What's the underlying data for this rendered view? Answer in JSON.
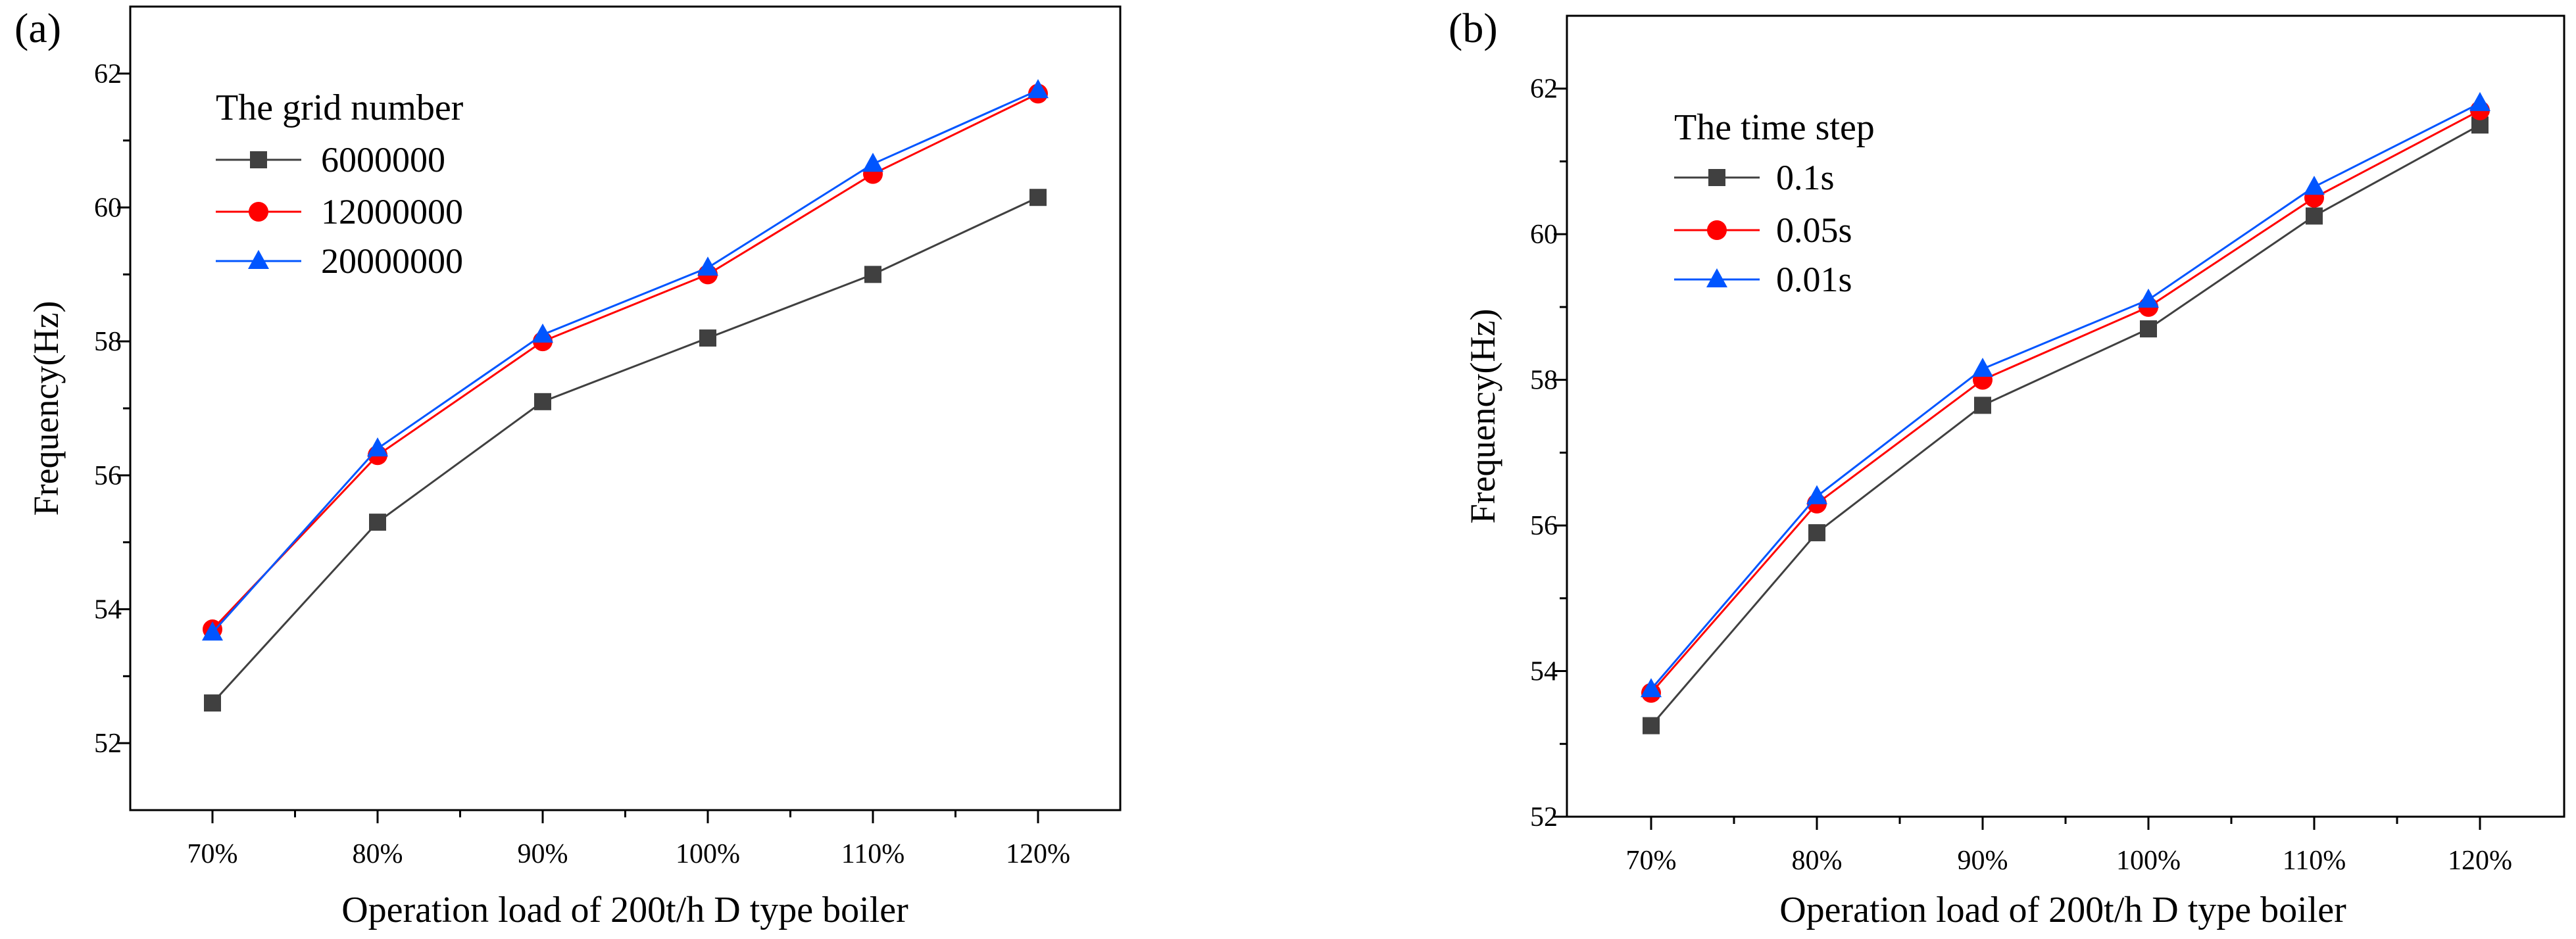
{
  "chart_data": [
    {
      "type": "line",
      "panel_label": "(a)",
      "categories": [
        "70%",
        "80%",
        "90%",
        "100%",
        "110%",
        "120%"
      ],
      "xlabel": "Operation load of 200t/h D type boiler",
      "ylabel": "Frequency(Hz)",
      "ylim": [
        51,
        63
      ],
      "yticks": [
        52,
        54,
        56,
        58,
        60,
        62
      ],
      "legend_title": "The grid number",
      "legend_position": "top-left",
      "series": [
        {
          "name": "6000000",
          "color": "#404040",
          "marker": "square",
          "values": [
            52.6,
            55.3,
            57.1,
            58.05,
            59.0,
            60.15
          ]
        },
        {
          "name": "12000000",
          "color": "#ff0000",
          "marker": "circle",
          "values": [
            53.7,
            56.3,
            58.0,
            59.0,
            60.5,
            61.7
          ]
        },
        {
          "name": "20000000",
          "color": "#0055ff",
          "marker": "triangle",
          "values": [
            53.65,
            56.4,
            58.1,
            59.1,
            60.65,
            61.75
          ]
        }
      ]
    },
    {
      "type": "line",
      "panel_label": "(b)",
      "categories": [
        "70%",
        "80%",
        "90%",
        "100%",
        "110%",
        "120%"
      ],
      "xlabel": "Operation load of 200t/h D type boiler",
      "ylabel": "Frequency(Hz)",
      "ylim": [
        52,
        63
      ],
      "yticks": [
        52,
        54,
        56,
        58,
        60,
        62
      ],
      "legend_title": "The time step",
      "legend_position": "top-left",
      "series": [
        {
          "name": "0.1s",
          "color": "#404040",
          "marker": "square",
          "values": [
            53.25,
            55.9,
            57.65,
            58.7,
            60.25,
            61.5
          ]
        },
        {
          "name": "0.05s",
          "color": "#ff0000",
          "marker": "circle",
          "values": [
            53.7,
            56.3,
            58.0,
            59.0,
            60.5,
            61.7
          ]
        },
        {
          "name": "0.01s",
          "color": "#0055ff",
          "marker": "triangle",
          "values": [
            53.75,
            56.4,
            58.15,
            59.1,
            60.65,
            61.8
          ]
        }
      ]
    }
  ]
}
